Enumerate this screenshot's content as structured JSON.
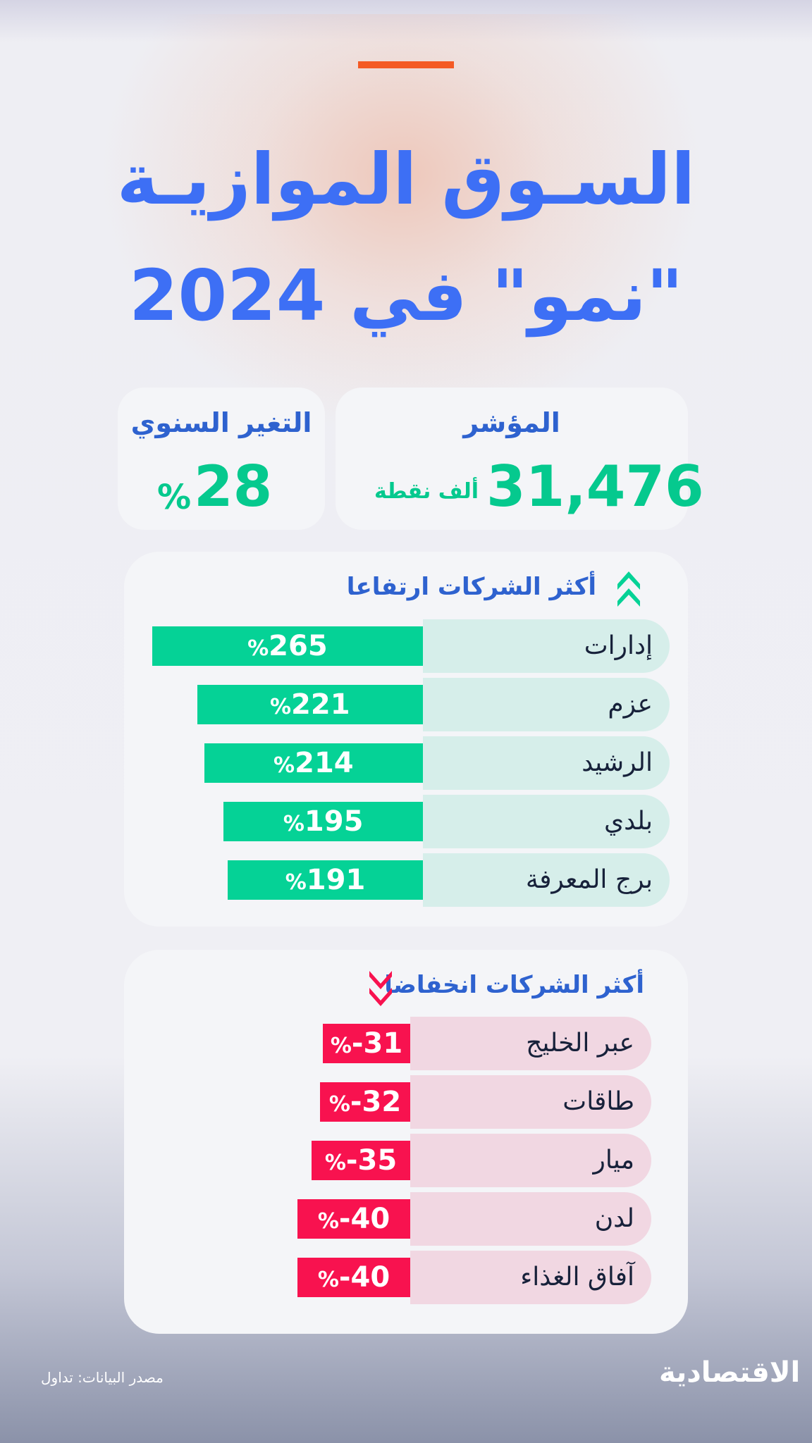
{
  "colors": {
    "title": "#3d6ff5",
    "heading": "#2e62cf",
    "positive": "#05d296",
    "negative": "#f8124f",
    "accent": "#f45a24"
  },
  "title": {
    "line1": "السـوق الموازيـة",
    "line2": "\"نمو\" في 2024"
  },
  "index_card": {
    "label": "المؤشر",
    "value": "31,476",
    "unit": "ألف نقطة"
  },
  "change_card": {
    "label": "التغير السنوي",
    "value": "28",
    "unit": "%"
  },
  "panels": {
    "gainers_title": "أكثر الشركات ارتفاعا",
    "losers_title": "أكثر الشركات انخفاضا",
    "gainers_icon": "double-chevron-up-icon",
    "losers_icon": "double-chevron-down-icon"
  },
  "chart_data": [
    {
      "type": "bar",
      "title": "أكثر الشركات ارتفاعا",
      "categories": [
        "إدارات",
        "عزم",
        "الرشيد",
        "بلدي",
        "برج المعرفة"
      ],
      "values": [
        265,
        221,
        214,
        195,
        191
      ],
      "value_labels": [
        "265",
        "221",
        "214",
        "195",
        "191"
      ],
      "unit": "%",
      "orientation": "horizontal"
    },
    {
      "type": "bar",
      "title": "أكثر الشركات انخفاضا",
      "categories": [
        "عبر الخليج",
        "طاقات",
        "ميار",
        "لدن",
        "آفاق الغذاء"
      ],
      "values": [
        -31,
        -32,
        -35,
        -40,
        -40
      ],
      "value_labels": [
        "-31",
        "-32",
        "-35",
        "-40",
        "-40"
      ],
      "unit": "%",
      "orientation": "horizontal"
    }
  ],
  "footer": {
    "source": "مصدر البيانات: تداول",
    "logo": "الاقتصادية"
  }
}
